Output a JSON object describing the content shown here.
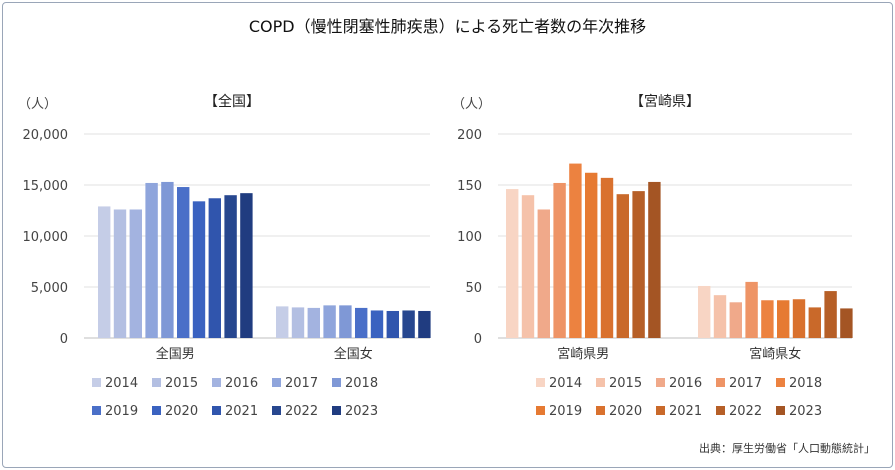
{
  "title": "COPD（慢性閉塞性肺疾患）による死亡者数の年次推移",
  "source": "出典：厚生労働省「人口動態統計」",
  "chart_data": [
    {
      "type": "bar",
      "title": "【全国】",
      "unit_label": "（人）",
      "categories": [
        "全国男",
        "全国女"
      ],
      "years": [
        "2014",
        "2015",
        "2016",
        "2017",
        "2018",
        "2019",
        "2020",
        "2021",
        "2022",
        "2023"
      ],
      "colors": [
        "#c5cde7",
        "#b3bfe2",
        "#a3b3e0",
        "#8fa5dc",
        "#7f98d6",
        "#4a6fc8",
        "#3a62c0",
        "#3055ad",
        "#27478f",
        "#203c80"
      ],
      "series": [
        {
          "name": "2014",
          "values": [
            12900,
            3100
          ]
        },
        {
          "name": "2015",
          "values": [
            12600,
            3000
          ]
        },
        {
          "name": "2016",
          "values": [
            12600,
            2950
          ]
        },
        {
          "name": "2017",
          "values": [
            15200,
            3200
          ]
        },
        {
          "name": "2018",
          "values": [
            15300,
            3200
          ]
        },
        {
          "name": "2019",
          "values": [
            14800,
            2950
          ]
        },
        {
          "name": "2020",
          "values": [
            13400,
            2700
          ]
        },
        {
          "name": "2021",
          "values": [
            13700,
            2650
          ]
        },
        {
          "name": "2022",
          "values": [
            14000,
            2700
          ]
        },
        {
          "name": "2023",
          "values": [
            14200,
            2650
          ]
        }
      ],
      "ylim": [
        0,
        20000
      ],
      "yticks": [
        0,
        5000,
        10000,
        15000,
        20000
      ],
      "ytick_labels": [
        "0",
        "5,000",
        "10,000",
        "15,000",
        "20,000"
      ],
      "grid": true,
      "legend": "bottom"
    },
    {
      "type": "bar",
      "title": "【宮崎県】",
      "unit_label": "（人）",
      "categories": [
        "宮崎県男",
        "宮崎県女"
      ],
      "years": [
        "2014",
        "2015",
        "2016",
        "2017",
        "2018",
        "2019",
        "2020",
        "2021",
        "2022",
        "2023"
      ],
      "colors": [
        "#f8d5c4",
        "#f5c2aa",
        "#f0a98a",
        "#ee9466",
        "#ec8240",
        "#e67a32",
        "#d9712e",
        "#c9692a",
        "#b65f27",
        "#a45524"
      ],
      "series": [
        {
          "name": "2014",
          "values": [
            146,
            51
          ]
        },
        {
          "name": "2015",
          "values": [
            140,
            42
          ]
        },
        {
          "name": "2016",
          "values": [
            126,
            35
          ]
        },
        {
          "name": "2017",
          "values": [
            152,
            55
          ]
        },
        {
          "name": "2018",
          "values": [
            171,
            37
          ]
        },
        {
          "name": "2019",
          "values": [
            162,
            37
          ]
        },
        {
          "name": "2020",
          "values": [
            157,
            38
          ]
        },
        {
          "name": "2021",
          "values": [
            141,
            30
          ]
        },
        {
          "name": "2022",
          "values": [
            144,
            46
          ]
        },
        {
          "name": "2023",
          "values": [
            153,
            29
          ]
        }
      ],
      "ylim": [
        0,
        200
      ],
      "yticks": [
        0,
        50,
        100,
        150,
        200
      ],
      "ytick_labels": [
        "0",
        "50",
        "100",
        "150",
        "200"
      ],
      "grid": true,
      "legend": "bottom"
    }
  ]
}
